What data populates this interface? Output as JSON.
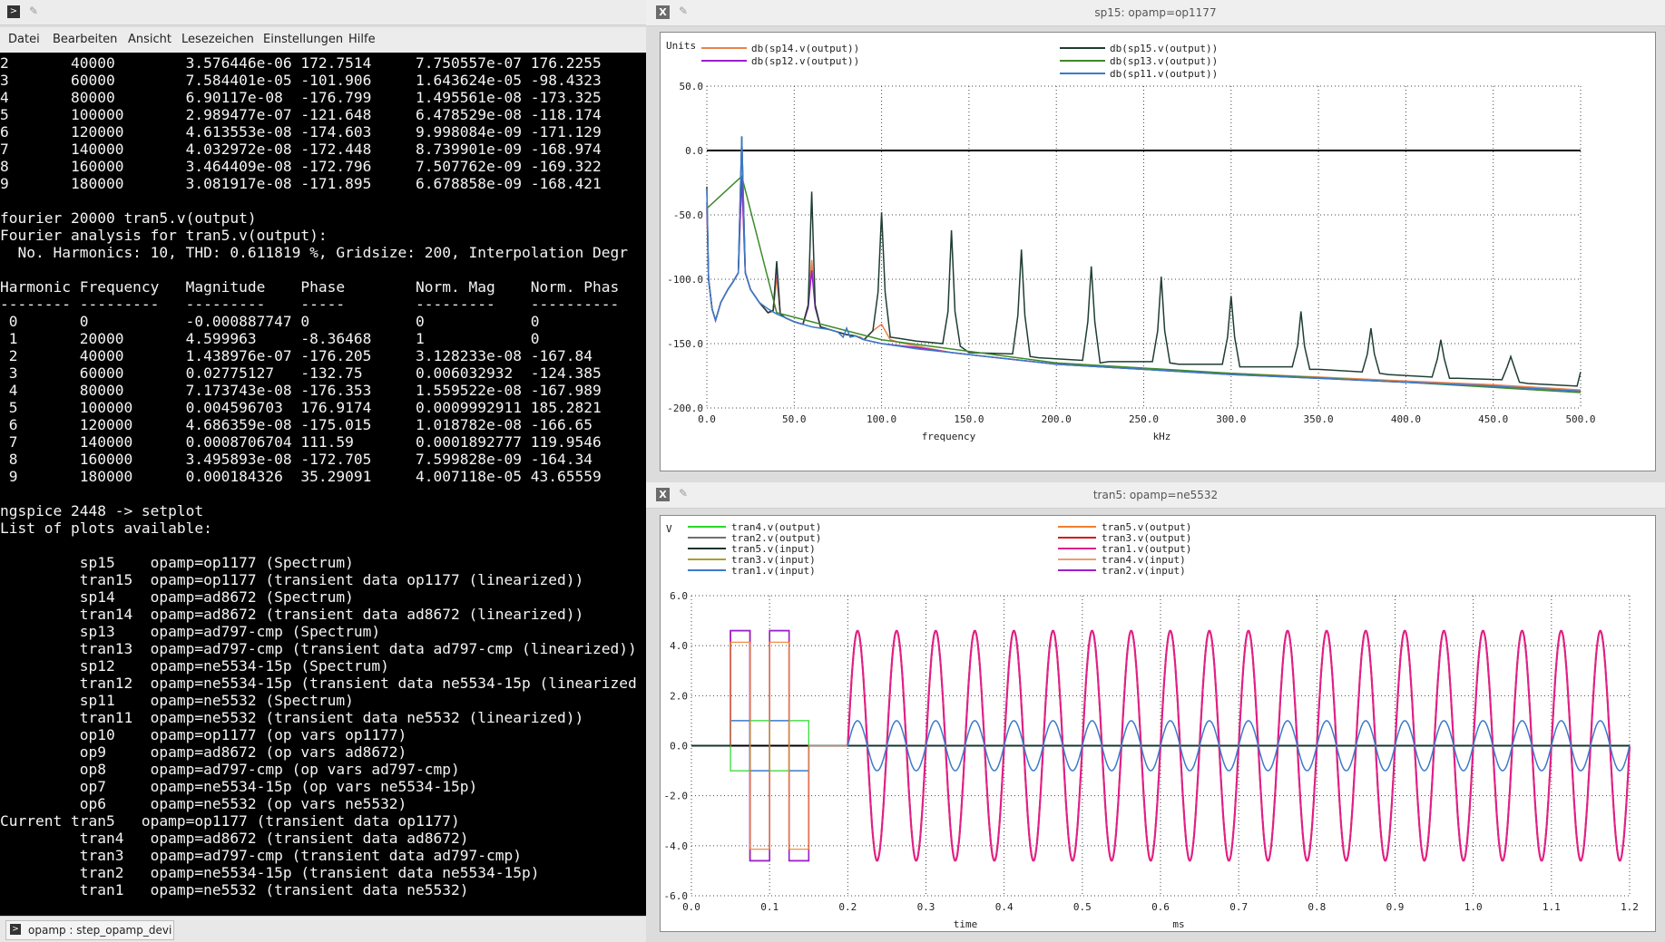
{
  "terminal": {
    "menu": [
      "Datei",
      "Bearbeiten",
      "Ansicht",
      "Lesezeichen",
      "Einstellungen",
      "Hilfe"
    ],
    "lines": [
      "2       40000        3.576446e-06 172.7514     7.750557e-07 176.2255",
      "3       60000        7.584401e-05 -101.906     1.643624e-05 -98.4323",
      "4       80000        6.90117e-08  -176.799     1.495561e-08 -173.325",
      "5       100000       2.989477e-07 -121.648     6.478529e-08 -118.174",
      "6       120000       4.613553e-08 -174.603     9.998084e-09 -171.129",
      "7       140000       4.032972e-08 -172.448     8.739901e-09 -168.974",
      "8       160000       3.464409e-08 -172.796     7.507762e-09 -169.322",
      "9       180000       3.081917e-08 -171.895     6.678858e-09 -168.421",
      "",
      "fourier 20000 tran5.v(output)",
      "Fourier analysis for tran5.v(output):",
      "  No. Harmonics: 10, THD: 0.611819 %, Gridsize: 200, Interpolation Degr",
      "",
      "Harmonic Frequency   Magnitude    Phase        Norm. Mag    Norm. Phas",
      "-------- ---------   ---------    -----        ---------    ----------",
      " 0       0           -0.000887747 0            0            0",
      " 1       20000       4.599963     -8.36468     1            0",
      " 2       40000       1.438976e-07 -176.205     3.128233e-08 -167.84",
      " 3       60000       0.02775127   -132.75      0.006032932  -124.385",
      " 4       80000       7.173743e-08 -176.353     1.559522e-08 -167.989",
      " 5       100000      0.004596703  176.9174     0.0009992911 185.2821",
      " 6       120000      4.686359e-08 -175.015     1.018782e-08 -166.65",
      " 7       140000      0.0008706704 111.59       0.0001892777 119.9546",
      " 8       160000      3.495893e-08 -172.705     7.599828e-09 -164.34",
      " 9       180000      0.000184326  35.29091     4.007118e-05 43.65559",
      "",
      "ngspice 2448 -> setplot",
      "List of plots available:",
      "",
      "         sp15    opamp=op1177 (Spectrum)",
      "         tran15  opamp=op1177 (transient data op1177 (linearized))",
      "         sp14    opamp=ad8672 (Spectrum)",
      "         tran14  opamp=ad8672 (transient data ad8672 (linearized))",
      "         sp13    opamp=ad797-cmp (Spectrum)",
      "         tran13  opamp=ad797-cmp (transient data ad797-cmp (linearized))",
      "         sp12    opamp=ne5534-15p (Spectrum)",
      "         tran12  opamp=ne5534-15p (transient data ne5534-15p (linearized",
      "         sp11    opamp=ne5532 (Spectrum)",
      "         tran11  opamp=ne5532 (transient data ne5532 (linearized))",
      "         op10    opamp=op1177 (op vars op1177)",
      "         op9     opamp=ad8672 (op vars ad8672)",
      "         op8     opamp=ad797-cmp (op vars ad797-cmp)",
      "         op7     opamp=ne5534-15p (op vars ne5534-15p)",
      "         op6     opamp=ne5532 (op vars ne5532)",
      "Current tran5   opamp=op1177 (transient data op1177)",
      "         tran4   opamp=ad8672 (transient data ad8672)",
      "         tran3   opamp=ad797-cmp (transient data ad797-cmp)",
      "         tran2   opamp=ne5534-15p (transient data ne5534-15p)",
      "         tran1   opamp=ne5532 (transient data ne5532)"
    ]
  },
  "taskbar": {
    "item": "opamp : step_opamp_devi"
  },
  "spectrum_window": {
    "title": "sp15: opamp=op1177"
  },
  "transient_window": {
    "title": "tran5: opamp=ne5532"
  },
  "chart_data": [
    {
      "type": "line",
      "ylabel": "Units",
      "xlabel": "frequency",
      "xunit": "kHz",
      "xlim": [
        0,
        500
      ],
      "ylim": [
        -200,
        50
      ],
      "xticks": [
        "0.0",
        "50.0",
        "100.0",
        "150.0",
        "200.0",
        "250.0",
        "300.0",
        "350.0",
        "400.0",
        "450.0",
        "500.0"
      ],
      "yticks": [
        "50.0",
        "0.0",
        "-50.0",
        "-100.0",
        "-150.0",
        "-200.0"
      ],
      "grid": true,
      "legend_placement": "top",
      "series": [
        {
          "name": "db(sp14.v(output))",
          "color": "#e8824a",
          "x": [
            0,
            1,
            3,
            5,
            8,
            12,
            15,
            18,
            20,
            22,
            25,
            30,
            35,
            38,
            40,
            42,
            45,
            50,
            55,
            58,
            60,
            62,
            65,
            70,
            75,
            80,
            85,
            88,
            90,
            95,
            100,
            105,
            110,
            120,
            140,
            160,
            200,
            250,
            300,
            350,
            400,
            450,
            500
          ],
          "y": [
            -45,
            -100,
            -123,
            -132,
            -118,
            -108,
            -102,
            -95,
            -20,
            -95,
            -108,
            -118,
            -126,
            -125,
            -98,
            -127,
            -130,
            -133,
            -135,
            -120,
            -85,
            -120,
            -137,
            -139,
            -141,
            -143,
            -144,
            -145,
            -147,
            -140,
            -135,
            -147,
            -149,
            -152,
            -157,
            -160,
            -166,
            -170,
            -173,
            -176,
            -179,
            -182,
            -186
          ]
        },
        {
          "name": "db(sp12.v(output))",
          "color": "#9c1fcf",
          "x": [
            0,
            1,
            3,
            5,
            8,
            12,
            15,
            18,
            20,
            22,
            25,
            30,
            35,
            38,
            40,
            42,
            45,
            50,
            55,
            58,
            60,
            62,
            65,
            70,
            75,
            80,
            85,
            90,
            100,
            120,
            140,
            160,
            200,
            250,
            300,
            350,
            400,
            450,
            500
          ],
          "y": [
            -40,
            -100,
            -123,
            -132,
            -118,
            -108,
            -102,
            -95,
            -20,
            -95,
            -108,
            -118,
            -126,
            -124,
            -88,
            -127,
            -130,
            -133,
            -135,
            -122,
            -93,
            -122,
            -137,
            -139,
            -141,
            -143,
            -144,
            -147,
            -150,
            -153,
            -157,
            -160,
            -166,
            -170,
            -174,
            -177,
            -180,
            -183,
            -187
          ]
        },
        {
          "name": "db(sp15.v(output))",
          "color": "#1f3d33",
          "x": [
            0,
            1,
            3,
            5,
            8,
            12,
            15,
            18,
            20,
            22,
            25,
            30,
            35,
            38,
            40,
            42,
            45,
            50,
            55,
            58,
            60,
            62,
            65,
            70,
            75,
            80,
            85,
            90,
            95,
            98,
            100,
            102,
            105,
            110,
            115,
            120,
            135,
            138,
            140,
            142,
            145,
            150,
            175,
            178,
            180,
            182,
            185,
            190,
            215,
            218,
            220,
            222,
            225,
            230,
            255,
            258,
            260,
            262,
            265,
            270,
            295,
            298,
            300,
            302,
            305,
            310,
            335,
            338,
            340,
            342,
            345,
            350,
            375,
            378,
            380,
            382,
            385,
            390,
            415,
            418,
            420,
            422,
            425,
            430,
            455,
            458,
            460,
            462,
            465,
            470,
            498,
            500
          ],
          "y": [
            -28,
            -100,
            -123,
            -132,
            -118,
            -108,
            -102,
            -95,
            11,
            -95,
            -108,
            -118,
            -126,
            -124,
            -86,
            -127,
            -130,
            -133,
            -135,
            -120,
            -32,
            -120,
            -137,
            -139,
            -141,
            -143,
            -144,
            -147,
            -140,
            -110,
            -48,
            -110,
            -145,
            -146,
            -147,
            -148,
            -150,
            -125,
            -62,
            -125,
            -152,
            -157,
            -158,
            -128,
            -77,
            -128,
            -160,
            -161,
            -163,
            -133,
            -90,
            -133,
            -165,
            -164,
            -164,
            -140,
            -98,
            -140,
            -165,
            -166,
            -166,
            -145,
            -113,
            -145,
            -168,
            -168,
            -168,
            -152,
            -125,
            -152,
            -170,
            -170,
            -172,
            -158,
            -138,
            -158,
            -173,
            -174,
            -176,
            -162,
            -147,
            -162,
            -177,
            -177,
            -178,
            -168,
            -160,
            -168,
            -180,
            -181,
            -183,
            -172
          ]
        },
        {
          "name": "db(sp13.v(output))",
          "color": "#3d8b2a",
          "x": [
            0,
            20,
            40,
            60,
            100,
            200,
            300,
            400,
            500
          ],
          "y": [
            -45,
            -20,
            -126,
            -133,
            -147,
            -165,
            -173,
            -180,
            -188
          ]
        },
        {
          "name": "db(sp11.v(output))",
          "color": "#3b7ac9",
          "x": [
            0,
            1,
            3,
            5,
            8,
            12,
            15,
            18,
            20,
            22,
            25,
            30,
            35,
            40,
            45,
            50,
            55,
            60,
            65,
            70,
            75,
            78,
            80,
            82,
            85,
            90,
            100,
            110,
            120,
            140,
            160,
            200,
            250,
            300,
            350,
            400,
            450,
            500
          ],
          "y": [
            -30,
            -100,
            -123,
            -132,
            -118,
            -108,
            -102,
            -95,
            11,
            -95,
            -108,
            -118,
            -123,
            -127,
            -130,
            -133,
            -135,
            -137,
            -138,
            -139,
            -141,
            -145,
            -138,
            -145,
            -144,
            -147,
            -150,
            -152,
            -154,
            -157,
            -160,
            -166,
            -170,
            -174,
            -177,
            -180,
            -183,
            -187
          ]
        }
      ]
    },
    {
      "type": "line",
      "ylabel": "V",
      "xlabel": "time",
      "xunit": "ms",
      "xlim": [
        0,
        1.2
      ],
      "ylim": [
        -6,
        6
      ],
      "xticks": [
        "0.0",
        "0.1",
        "0.2",
        "0.3",
        "0.4",
        "0.5",
        "0.6",
        "0.7",
        "0.8",
        "0.9",
        "1.0",
        "1.1",
        "1.2"
      ],
      "yticks": [
        "6.0",
        "4.0",
        "2.0",
        "0.0",
        "-2.0",
        "-4.0",
        "-6.0"
      ],
      "grid": true,
      "legend_placement": "top",
      "sine": {
        "frequency_khz": 20,
        "start_ms": 0.2,
        "output_amplitude": 4.6,
        "input_amplitude": 1.0
      },
      "series": [
        {
          "name": "tran4.v(output)",
          "color": "#29d829"
        },
        {
          "name": "tran2.v(output)",
          "color": "#707070"
        },
        {
          "name": "tran5.v(input)",
          "color": "#17342c"
        },
        {
          "name": "tran3.v(input)",
          "color": "#a8a030"
        },
        {
          "name": "tran1.v(input)",
          "color": "#3b7ac9"
        },
        {
          "name": "tran5.v(output)",
          "color": "#f08030"
        },
        {
          "name": "tran3.v(output)",
          "color": "#d81818"
        },
        {
          "name": "tran1.v(output)",
          "color": "#e0208a"
        },
        {
          "name": "tran4.v(input)",
          "color": "#e8a070"
        },
        {
          "name": "tran2.v(input)",
          "color": "#9c1fcf"
        }
      ]
    }
  ]
}
